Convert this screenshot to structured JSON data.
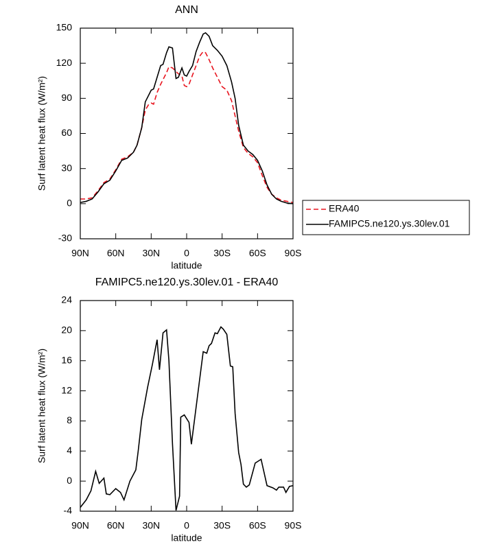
{
  "chart_data": [
    {
      "type": "line",
      "title": "ANN",
      "xlabel": "latitude",
      "ylabel": "Surf latent heat flux (W/m²)",
      "xlim": [
        90,
        -90
      ],
      "xticks": [
        {
          "value": 90,
          "label": "90N"
        },
        {
          "value": 60,
          "label": "60N"
        },
        {
          "value": 30,
          "label": "30N"
        },
        0,
        {
          "value": -30,
          "label": "30S"
        },
        {
          "value": -60,
          "label": "60S"
        },
        {
          "value": -90,
          "label": "90S"
        }
      ],
      "ylim": [
        -30,
        150
      ],
      "yticks": [
        -30,
        0,
        30,
        60,
        90,
        120,
        150
      ],
      "legend": "right",
      "x": [
        90,
        85,
        80,
        75,
        70,
        65,
        60,
        55,
        50,
        45,
        42,
        38,
        35,
        32,
        30,
        28,
        25,
        22,
        20,
        17,
        15,
        12,
        9,
        7,
        4,
        2,
        0,
        -2,
        -5,
        -8,
        -11,
        -14,
        -16,
        -19,
        -22,
        -26,
        -30,
        -34,
        -38,
        -41,
        -44,
        -48,
        -52,
        -56,
        -60,
        -64,
        -68,
        -72,
        -76,
        -80,
        -85,
        -90
      ],
      "series": [
        {
          "name": "ERA40",
          "color": "#e8141e",
          "line_style": "dashed",
          "values": [
            4,
            4,
            5,
            11,
            18,
            21,
            29,
            38,
            40,
            44,
            50,
            65,
            80,
            85,
            86,
            85,
            95,
            102,
            106,
            112,
            117,
            116,
            113,
            111,
            109,
            101,
            100,
            102,
            110,
            118,
            126,
            130,
            129,
            123,
            116,
            108,
            100,
            97,
            88,
            75,
            62,
            48,
            43,
            40,
            35,
            24,
            14,
            8,
            5,
            3,
            2,
            1
          ]
        },
        {
          "name": "FAMIPC5.ne120.ys.30lev.01",
          "color": "#000000",
          "line_style": "solid",
          "values": [
            1,
            2,
            4,
            10,
            17,
            20,
            28,
            37,
            39,
            44,
            50,
            65,
            87,
            93,
            97,
            98,
            108,
            118,
            119,
            129,
            134,
            133,
            107,
            108,
            116,
            110,
            109,
            113,
            118,
            130,
            138,
            145,
            146,
            143,
            135,
            131,
            126,
            118,
            104,
            90,
            67,
            50,
            45,
            42,
            37,
            28,
            16,
            8,
            4,
            2,
            0.5,
            0
          ]
        }
      ]
    },
    {
      "type": "line",
      "title": "FAMIPC5.ne120.ys.30lev.01 - ERA40",
      "xlabel": "latitude",
      "ylabel": "Surf latent heat flux (W/m²)",
      "xlim": [
        90,
        -90
      ],
      "xticks": [
        {
          "value": 90,
          "label": "90N"
        },
        {
          "value": 60,
          "label": "60N"
        },
        {
          "value": 30,
          "label": "30N"
        },
        0,
        {
          "value": -30,
          "label": "30S"
        },
        {
          "value": -60,
          "label": "60S"
        },
        {
          "value": -90,
          "label": "90S"
        }
      ],
      "ylim": [
        -4,
        24
      ],
      "yticks": [
        -4,
        0,
        4,
        8,
        12,
        16,
        20,
        24
      ],
      "x": [
        90,
        85,
        81,
        77,
        74,
        70,
        68,
        65,
        60,
        56,
        53,
        48,
        43,
        41,
        38,
        33,
        29,
        25,
        23,
        20,
        17,
        15,
        12,
        9,
        6,
        5,
        2,
        -2,
        -4,
        -14,
        -17,
        -19,
        -21,
        -24,
        -26,
        -29,
        -31,
        -34,
        -37,
        -39,
        -41,
        -44,
        -46,
        -48,
        -50.5,
        -53,
        -58,
        -63,
        -68,
        -73,
        -76,
        -78,
        -82,
        -84,
        -87,
        -90
      ],
      "series": [
        {
          "color": "#000000",
          "line_style": "solid",
          "values": [
            -3.5,
            -2.5,
            -1.3,
            1.3,
            -0.3,
            0.4,
            -1.7,
            -1.8,
            -1,
            -1.5,
            -2.5,
            0,
            1.5,
            4,
            8.2,
            12.5,
            15.5,
            18.8,
            14.8,
            19.7,
            20.1,
            16,
            5,
            -3.9,
            -2,
            8.5,
            8.8,
            7.8,
            4.9,
            17.2,
            17,
            18,
            18.3,
            19.7,
            19.6,
            20.5,
            20.2,
            19.5,
            15.3,
            15.2,
            9,
            3.8,
            2.2,
            -0.4,
            -0.8,
            -0.5,
            2.4,
            2.9,
            -0.6,
            -0.9,
            -1.2,
            -0.8,
            -0.8,
            -1.5,
            -0.7,
            -0.6
          ]
        }
      ]
    }
  ]
}
